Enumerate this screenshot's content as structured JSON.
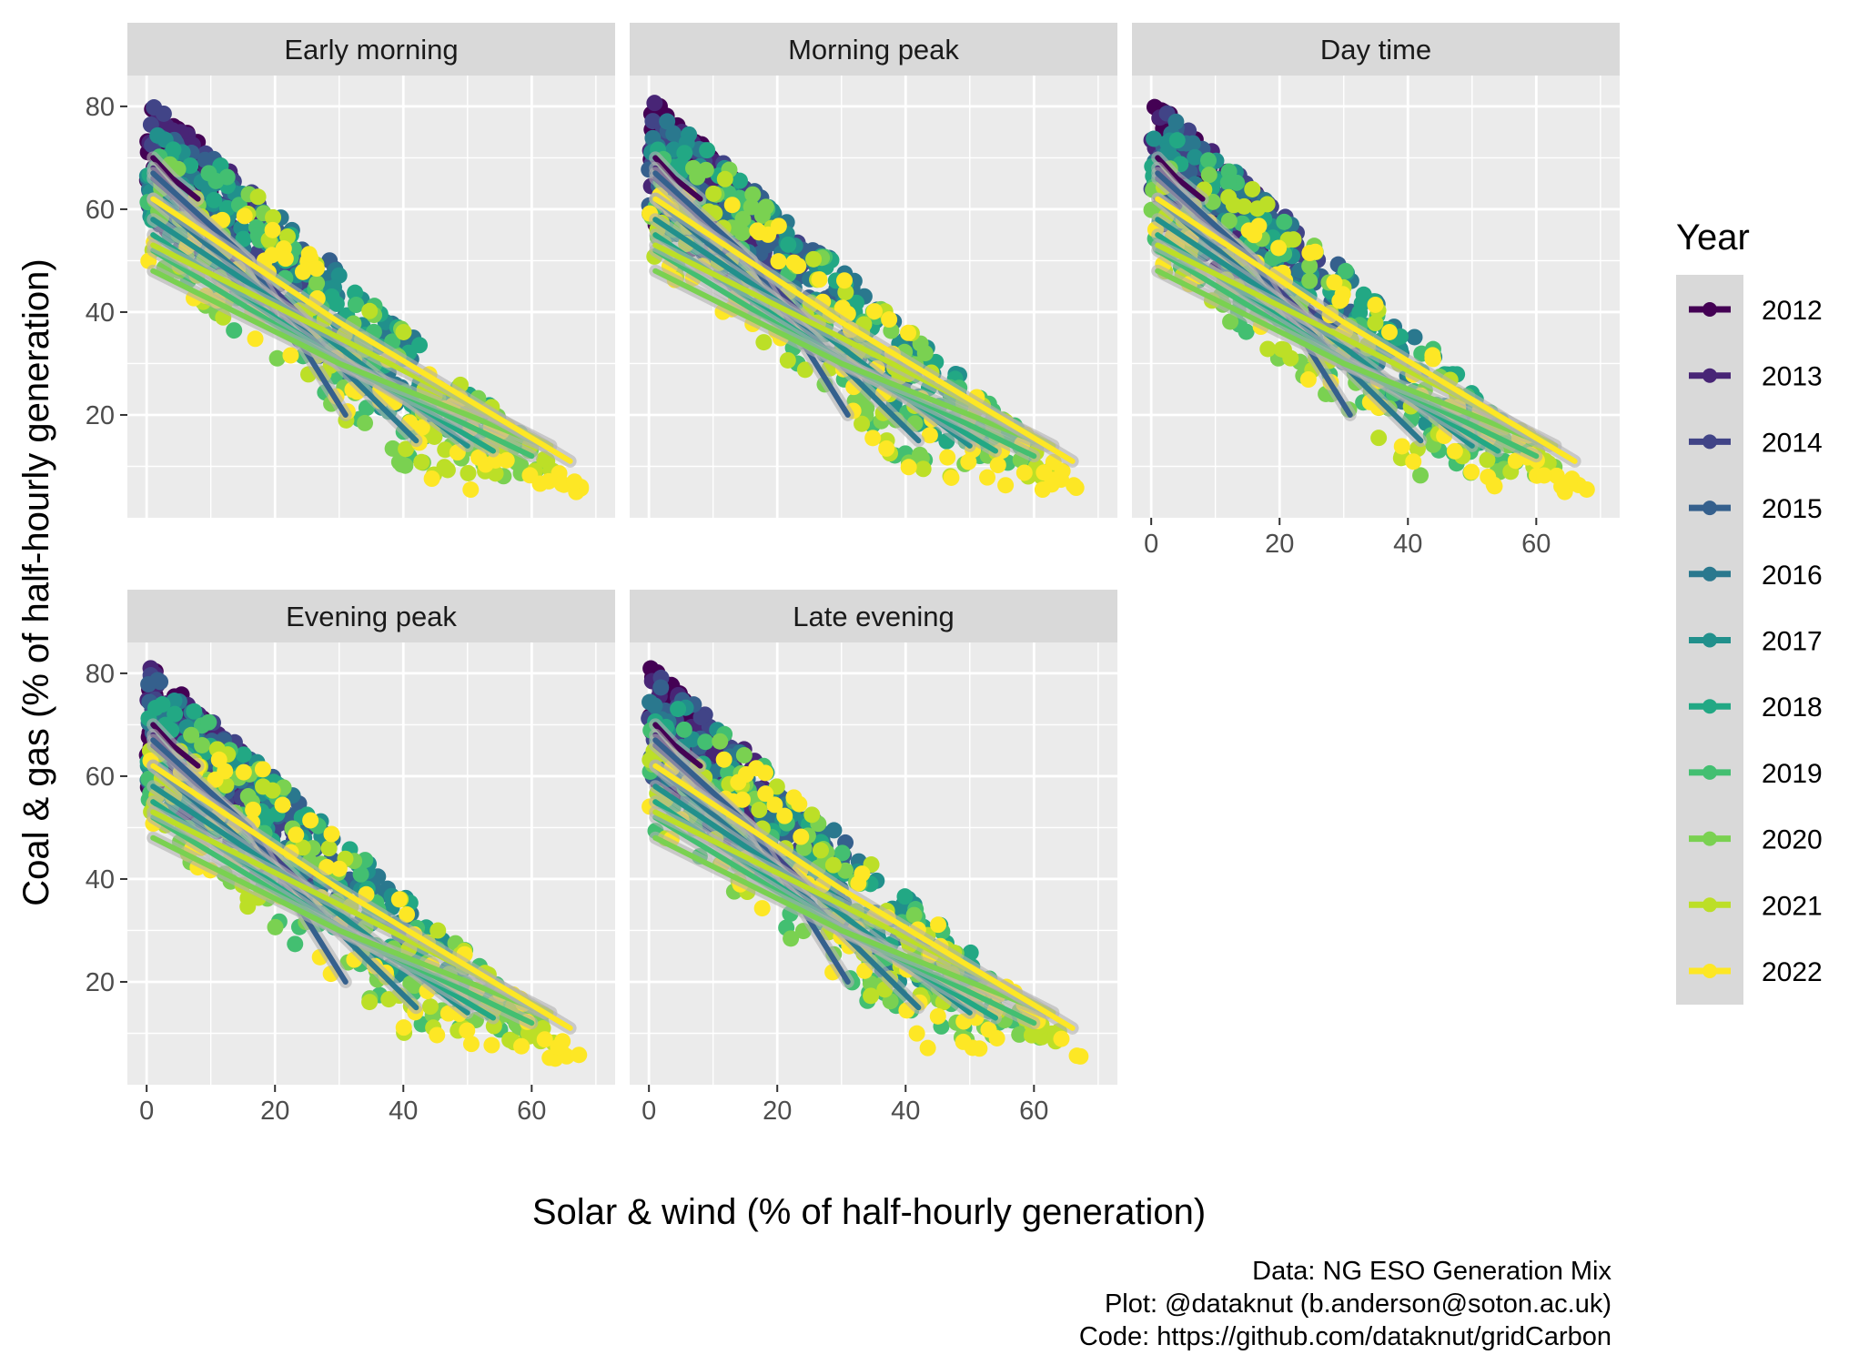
{
  "chart_data": {
    "type": "scatter",
    "overlay": "smooth-line",
    "facets": [
      "Early morning",
      "Morning peak",
      "Day time",
      "Evening peak",
      "Late evening"
    ],
    "xlabel": "Solar & wind (% of half-hourly generation)",
    "ylabel": "Coal & gas (% of half-hourly generation)",
    "xlim": [
      -3,
      73
    ],
    "ylim": [
      0,
      86
    ],
    "x_ticks": [
      0,
      20,
      40,
      60
    ],
    "y_ticks": [
      20,
      40,
      60,
      80
    ],
    "grid": true,
    "legend": {
      "title": "Year",
      "position": "right",
      "entries": [
        "2012",
        "2013",
        "2014",
        "2015",
        "2016",
        "2017",
        "2018",
        "2019",
        "2020",
        "2021",
        "2022"
      ],
      "colors": [
        "#440154",
        "#482576",
        "#414487",
        "#35608d",
        "#2a788e",
        "#21908c",
        "#22a884",
        "#43bf71",
        "#7ad151",
        "#bcdf27",
        "#fde725"
      ]
    },
    "series": [
      {
        "name": "2012",
        "color": "#440154",
        "x_range": [
          0,
          10
        ],
        "y_range": [
          56,
          82
        ],
        "trend": [
          [
            1,
            70
          ],
          [
            4,
            66
          ],
          [
            8,
            62
          ]
        ]
      },
      {
        "name": "2013",
        "color": "#482576",
        "x_range": [
          0,
          18
        ],
        "y_range": [
          45,
          81
        ],
        "trend": [
          [
            1,
            68
          ],
          [
            8,
            58
          ],
          [
            16,
            50
          ]
        ]
      },
      {
        "name": "2014",
        "color": "#414487",
        "x_range": [
          0,
          26
        ],
        "y_range": [
          38,
          80
        ],
        "trend": [
          [
            1,
            66
          ],
          [
            12,
            54
          ],
          [
            25,
            38
          ]
        ]
      },
      {
        "name": "2015",
        "color": "#35608d",
        "x_range": [
          0,
          32
        ],
        "y_range": [
          24,
          79
        ],
        "trend": [
          [
            1,
            67
          ],
          [
            16,
            50
          ],
          [
            31,
            20
          ]
        ]
      },
      {
        "name": "2016",
        "color": "#2a788e",
        "x_range": [
          0,
          42
        ],
        "y_range": [
          22,
          78
        ],
        "trend": [
          [
            1,
            62
          ],
          [
            20,
            42
          ],
          [
            42,
            15
          ]
        ]
      },
      {
        "name": "2017",
        "color": "#21908c",
        "x_range": [
          0,
          50
        ],
        "y_range": [
          18,
          76
        ],
        "trend": [
          [
            1,
            58
          ],
          [
            25,
            38
          ],
          [
            50,
            14
          ]
        ]
      },
      {
        "name": "2018",
        "color": "#22a884",
        "x_range": [
          0,
          55
        ],
        "y_range": [
          14,
          74
        ],
        "trend": [
          [
            1,
            55
          ],
          [
            27,
            33
          ],
          [
            54,
            13
          ]
        ]
      },
      {
        "name": "2019",
        "color": "#43bf71",
        "x_range": [
          0,
          60
        ],
        "y_range": [
          10,
          72
        ],
        "trend": [
          [
            1,
            52
          ],
          [
            30,
            30
          ],
          [
            60,
            12
          ]
        ]
      },
      {
        "name": "2020",
        "color": "#7ad151",
        "x_range": [
          0,
          63
        ],
        "y_range": [
          8,
          70
        ],
        "trend": [
          [
            1,
            48
          ],
          [
            30,
            30
          ],
          [
            62,
            14
          ]
        ]
      },
      {
        "name": "2021",
        "color": "#bcdf27",
        "x_range": [
          0,
          64
        ],
        "y_range": [
          8,
          66
        ],
        "trend": [
          [
            1,
            53
          ],
          [
            30,
            35
          ],
          [
            63,
            14
          ]
        ]
      },
      {
        "name": "2022",
        "color": "#fde725",
        "x_range": [
          0,
          68
        ],
        "y_range": [
          5,
          64
        ],
        "trend": [
          [
            1,
            62
          ],
          [
            30,
            38
          ],
          [
            66,
            11
          ]
        ]
      }
    ]
  },
  "caption": {
    "line1": "Data: NG ESO Generation Mix",
    "line2": "Plot: @dataknut (b.anderson@soton.ac.uk)",
    "line3": "Code: https://github.com/dataknut/gridCarbon"
  }
}
